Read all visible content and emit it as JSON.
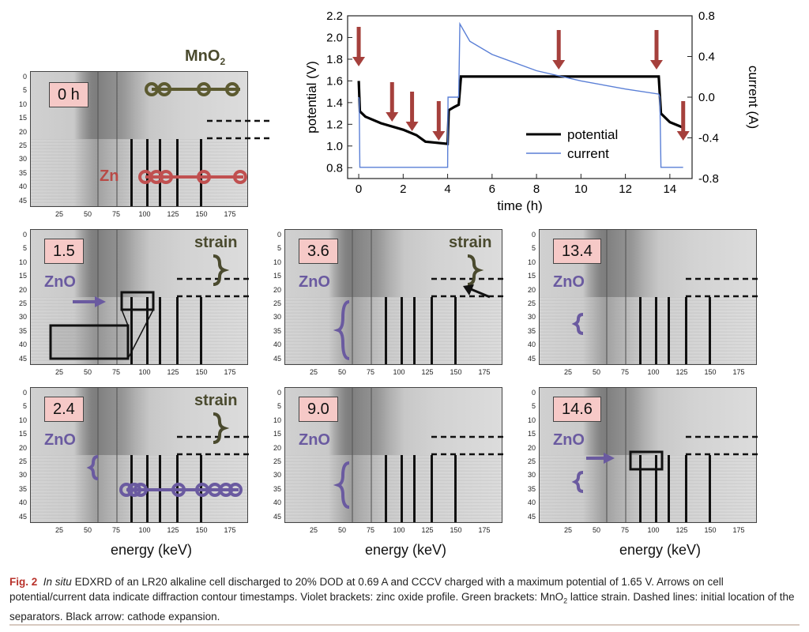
{
  "figure": {
    "top_panel": {
      "time_label": "0 h",
      "title": "MnO",
      "title_sub": "2",
      "zn_label": "Zn"
    },
    "panels": [
      {
        "time_label": "1.5",
        "zno": "ZnO",
        "strain": "strain"
      },
      {
        "time_label": "3.6",
        "zno": "ZnO",
        "strain": "strain"
      },
      {
        "time_label": "13.4",
        "zno": "ZnO",
        "strain": ""
      },
      {
        "time_label": "2.4",
        "zno": "ZnO",
        "strain": "strain"
      },
      {
        "time_label": "9.0",
        "zno": "ZnO",
        "strain": ""
      },
      {
        "time_label": "14.6",
        "zno": "ZnO",
        "strain": ""
      }
    ],
    "y_ticks": [
      "0",
      "5",
      "10",
      "15",
      "20",
      "25",
      "30",
      "35",
      "40",
      "45"
    ],
    "x_ticks": [
      "25",
      "50",
      "75",
      "100",
      "125",
      "150",
      "175"
    ],
    "xaxis_title": "energy (keV)",
    "caption": {
      "label": "Fig. 2",
      "italic": "In situ",
      "text1": " EDXRD of an LR20 alkaline cell discharged to 20% DOD at 0.69 A and CCCV charged with a maximum potential of 1.65 V. Arrows on cell potential/current data indicate diffraction contour timestamps. Violet brackets: zinc oxide profile. Green brackets: MnO",
      "sub": "2",
      "text2": " lattice strain. Dashed lines: initial location of the separators. Black arrow: cathode expansion."
    }
  },
  "chart_data": {
    "type": "line",
    "xlabel": "time (h)",
    "ylabel": "potential (V)",
    "y2label": "current (A)",
    "xlim": [
      -0.5,
      15
    ],
    "ylim": [
      0.7,
      2.2
    ],
    "y2lim": [
      -0.8,
      0.8
    ],
    "x_ticks": [
      0,
      2,
      4,
      6,
      8,
      10,
      12,
      14
    ],
    "y_ticks": [
      0.8,
      1.0,
      1.2,
      1.4,
      1.6,
      1.8,
      2.0,
      2.2
    ],
    "y2_ticks": [
      -0.8,
      -0.4,
      0.0,
      0.4,
      0.8
    ],
    "legend_position": "center-right",
    "series": [
      {
        "name": "potential",
        "color": "#000000",
        "axis": "left",
        "x": [
          0,
          0.05,
          0.3,
          1.0,
          2.0,
          2.6,
          3.0,
          3.5,
          4.0,
          4.05,
          4.3,
          4.5,
          4.6,
          8.0,
          13.5,
          13.6,
          14.0,
          14.6
        ],
        "y": [
          1.6,
          1.32,
          1.27,
          1.21,
          1.15,
          1.1,
          1.04,
          1.03,
          1.02,
          1.33,
          1.36,
          1.38,
          1.64,
          1.64,
          1.64,
          1.3,
          1.22,
          1.17
        ]
      },
      {
        "name": "current",
        "color": "#5a7fd6",
        "axis": "right",
        "x": [
          0,
          0.02,
          0.05,
          4.0,
          4.02,
          4.5,
          4.55,
          5.0,
          6.0,
          8.0,
          10.0,
          12.0,
          13.5,
          13.55,
          13.6,
          14.6
        ],
        "y": [
          0.0,
          -0.02,
          -0.69,
          -0.69,
          0.0,
          0.0,
          0.72,
          0.55,
          0.42,
          0.26,
          0.16,
          0.08,
          0.03,
          0.0,
          -0.69,
          -0.69
        ]
      }
    ],
    "arrow_times": [
      0,
      1.5,
      2.4,
      3.6,
      9.0,
      13.4,
      14.6
    ]
  }
}
